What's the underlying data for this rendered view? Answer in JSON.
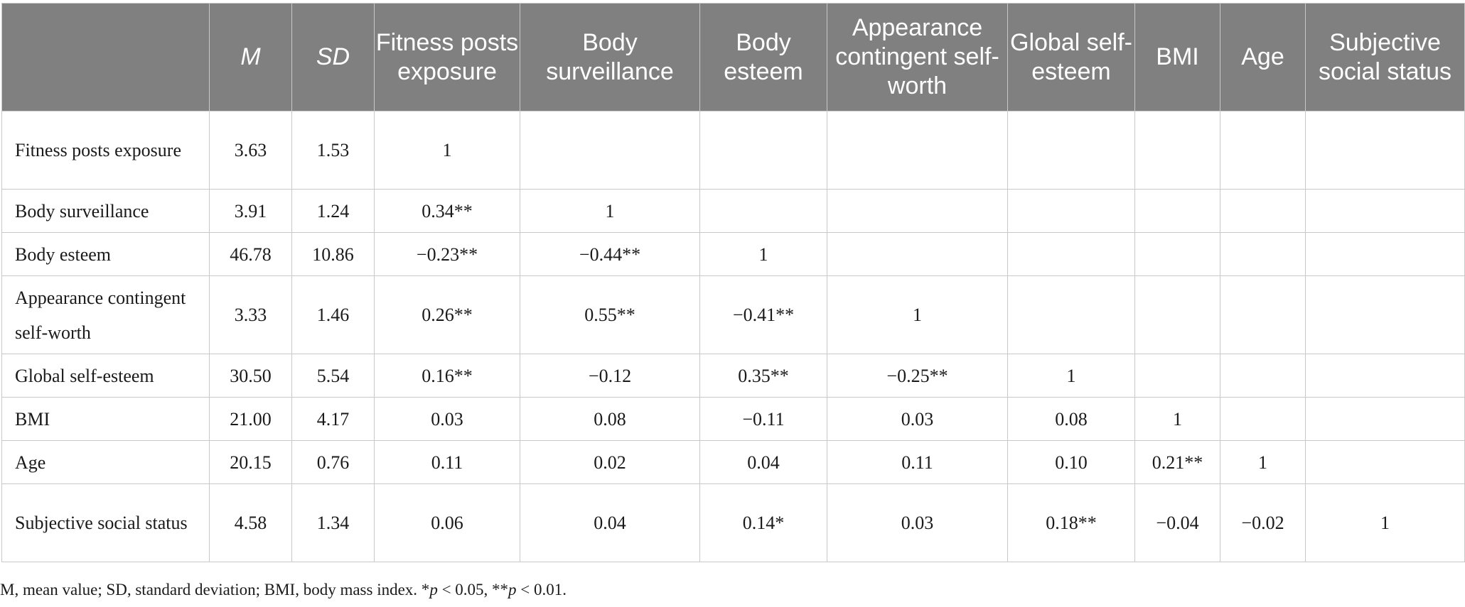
{
  "table": {
    "headers": {
      "blank": "",
      "m": "M",
      "sd": "SD",
      "fitness": "Fitness posts exposure",
      "surveillance": "Body surveillance",
      "esteem": "Body esteem",
      "appearance": "Appearance contingent self-worth",
      "global": "Global self-esteem",
      "bmi": "BMI",
      "age": "Age",
      "social": "Subjective social status"
    },
    "rows": [
      {
        "label": "Fitness posts exposure",
        "m": "3.63",
        "sd": "1.53",
        "c1": "1",
        "c2": "",
        "c3": "",
        "c4": "",
        "c5": "",
        "c6": "",
        "c7": "",
        "c8": ""
      },
      {
        "label": "Body surveillance",
        "m": "3.91",
        "sd": "1.24",
        "c1": "0.34**",
        "c2": "1",
        "c3": "",
        "c4": "",
        "c5": "",
        "c6": "",
        "c7": "",
        "c8": ""
      },
      {
        "label": "Body esteem",
        "m": "46.78",
        "sd": "10.86",
        "c1": "−0.23**",
        "c2": "−0.44**",
        "c3": "1",
        "c4": "",
        "c5": "",
        "c6": "",
        "c7": "",
        "c8": ""
      },
      {
        "label": "Appearance contingent self-worth",
        "m": "3.33",
        "sd": "1.46",
        "c1": "0.26**",
        "c2": "0.55**",
        "c3": "−0.41**",
        "c4": "1",
        "c5": "",
        "c6": "",
        "c7": "",
        "c8": ""
      },
      {
        "label": "Global self-esteem",
        "m": "30.50",
        "sd": "5.54",
        "c1": "0.16**",
        "c2": "−0.12",
        "c3": "0.35**",
        "c4": "−0.25**",
        "c5": "1",
        "c6": "",
        "c7": "",
        "c8": ""
      },
      {
        "label": "BMI",
        "m": "21.00",
        "sd": "4.17",
        "c1": "0.03",
        "c2": "0.08",
        "c3": "−0.11",
        "c4": "0.03",
        "c5": "0.08",
        "c6": "1",
        "c7": "",
        "c8": ""
      },
      {
        "label": "Age",
        "m": "20.15",
        "sd": "0.76",
        "c1": "0.11",
        "c2": "0.02",
        "c3": "0.04",
        "c4": "0.11",
        "c5": "0.10",
        "c6": "0.21**",
        "c7": "1",
        "c8": ""
      },
      {
        "label": "Subjective social status",
        "m": "4.58",
        "sd": "1.34",
        "c1": "0.06",
        "c2": "0.04",
        "c3": "0.14*",
        "c4": "0.03",
        "c5": "0.18**",
        "c6": "−0.04",
        "c7": "−0.02",
        "c8": "1"
      }
    ]
  },
  "note": {
    "prefix": "M, mean value; SD, standard deviation; BMI, body mass index. *",
    "p1": "p",
    "mid": " < 0.05, **",
    "p2": "p",
    "suffix": " < 0.01."
  }
}
